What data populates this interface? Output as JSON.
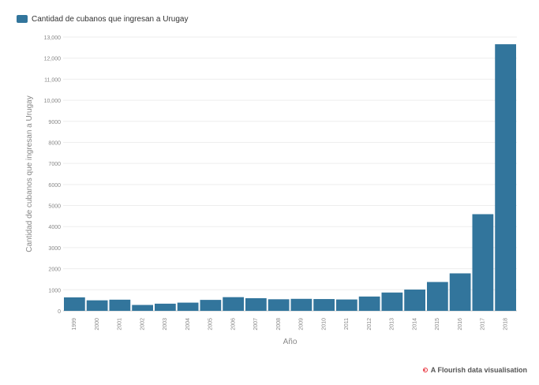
{
  "chart_data": {
    "type": "bar",
    "legend": {
      "label": "Cantidad de cubanos que ingresan a Urugay",
      "placement": "top-left"
    },
    "xlabel": "Año",
    "ylabel": "Cantidad de cubanos que ingresan a Urugay",
    "categories": [
      "1999",
      "2000",
      "2001",
      "2002",
      "2003",
      "2004",
      "2005",
      "2006",
      "2007",
      "2008",
      "2009",
      "2010",
      "2011",
      "2012",
      "2013",
      "2014",
      "2015",
      "2016",
      "2017",
      "2018"
    ],
    "values": [
      640,
      500,
      530,
      280,
      340,
      390,
      520,
      650,
      600,
      550,
      570,
      560,
      540,
      680,
      870,
      1010,
      1370,
      1780,
      4590,
      12660
    ],
    "ylim": [
      0,
      13000
    ],
    "yticks": [
      0,
      1000,
      2000,
      3000,
      4000,
      5000,
      6000,
      7000,
      8000,
      9000,
      10000,
      11000,
      12000,
      13000
    ],
    "ytick_labels": [
      "0",
      "1000",
      "2000",
      "3000",
      "4000",
      "5000",
      "6000",
      "7000",
      "8000",
      "9000",
      "10,000",
      "11,000",
      "12,000",
      "13,000"
    ],
    "grid": true,
    "color": "#32759c"
  },
  "footer": {
    "text": "A Flourish data visualisation",
    "accent": "#e8323c"
  }
}
